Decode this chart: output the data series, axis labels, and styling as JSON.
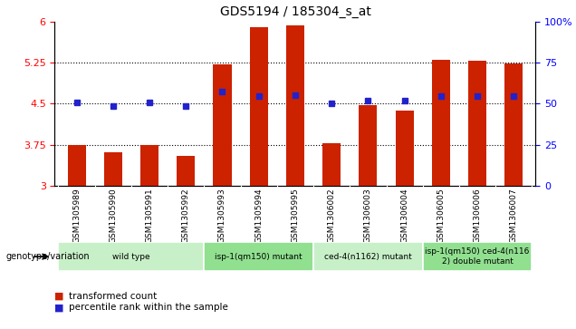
{
  "title": "GDS5194 / 185304_s_at",
  "samples": [
    "GSM1305989",
    "GSM1305990",
    "GSM1305991",
    "GSM1305992",
    "GSM1305993",
    "GSM1305994",
    "GSM1305995",
    "GSM1306002",
    "GSM1306003",
    "GSM1306004",
    "GSM1306005",
    "GSM1306006",
    "GSM1306007"
  ],
  "bar_values": [
    3.75,
    3.62,
    3.75,
    3.55,
    5.22,
    5.9,
    5.92,
    3.78,
    4.47,
    4.38,
    5.3,
    5.28,
    5.24
  ],
  "dot_values": [
    4.52,
    4.46,
    4.52,
    4.45,
    4.72,
    4.63,
    4.65,
    4.51,
    4.56,
    4.56,
    4.64,
    4.63,
    4.64
  ],
  "bar_color": "#cc2200",
  "dot_color": "#2222cc",
  "ymin": 3.0,
  "ymax": 6.0,
  "yticks": [
    3.0,
    3.75,
    4.5,
    5.25,
    6.0
  ],
  "ytick_labels": [
    "3",
    "3.75",
    "4.5",
    "5.25",
    "6"
  ],
  "y2ticks": [
    0,
    25,
    50,
    75,
    100
  ],
  "y2tick_labels": [
    "0",
    "25",
    "50",
    "75",
    "100%"
  ],
  "hlines": [
    3.75,
    4.5,
    5.25
  ],
  "genotype_groups": [
    {
      "label": "wild type",
      "start": 0,
      "end": 3,
      "color": "#c8f0c8"
    },
    {
      "label": "isp-1(qm150) mutant",
      "start": 4,
      "end": 6,
      "color": "#90e090"
    },
    {
      "label": "ced-4(n1162) mutant",
      "start": 7,
      "end": 9,
      "color": "#c8f0c8"
    },
    {
      "label": "isp-1(qm150) ced-4(n116\n2) double mutant",
      "start": 10,
      "end": 12,
      "color": "#90e090"
    }
  ],
  "genotype_label": "genotype/variation",
  "legend_items": [
    {
      "color": "#cc2200",
      "label": "transformed count"
    },
    {
      "color": "#2222cc",
      "label": "percentile rank within the sample"
    }
  ],
  "background_color": "#ffffff",
  "sample_bg_color": "#c8c8c8",
  "bar_width": 0.5
}
